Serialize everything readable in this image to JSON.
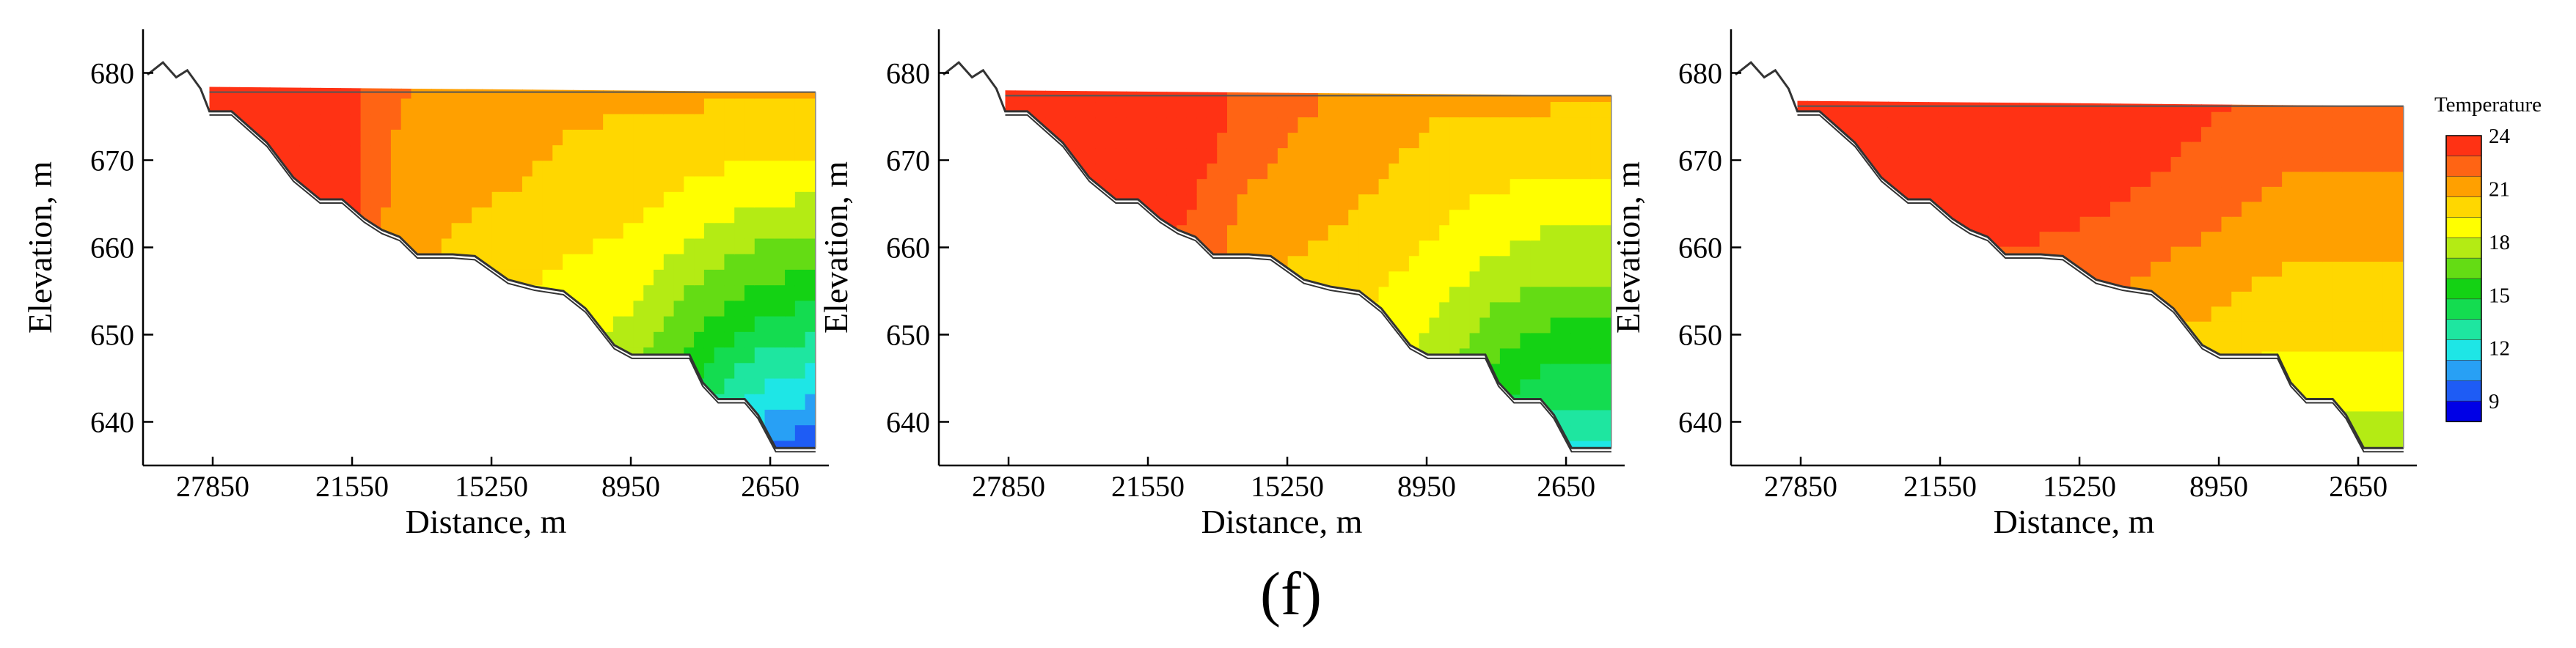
{
  "figure": {
    "caption": "(f)"
  },
  "chart_data": [
    {
      "type": "heatmap",
      "title": "",
      "xlabel": "Distance, m",
      "ylabel": "Elevation, m",
      "x_ticks": [
        "27850",
        "21550",
        "15250",
        "8950",
        "2650"
      ],
      "y_ticks": [
        "680",
        "670",
        "660",
        "650",
        "640"
      ],
      "xlim": [
        31000,
        0
      ],
      "ylim": [
        635,
        685
      ],
      "water_surface": 677.8,
      "field": {
        "top": [
          24,
          24,
          24,
          22,
          21.5,
          21.5,
          21,
          21,
          21,
          21,
          21
        ],
        "bottom": [
          24,
          24,
          24,
          20.5,
          19,
          18,
          17.5,
          16.5,
          13.5,
          11,
          10
        ]
      }
    },
    {
      "type": "heatmap",
      "title": "",
      "xlabel": "Distance, m",
      "ylabel": "Elevation, m",
      "x_ticks": [
        "27850",
        "21550",
        "15250",
        "8950",
        "2650"
      ],
      "y_ticks": [
        "680",
        "670",
        "660",
        "650",
        "640"
      ],
      "xlim": [
        31000,
        0
      ],
      "ylim": [
        635,
        685
      ],
      "water_surface": 677.4,
      "field": {
        "top": [
          24,
          24,
          24,
          24,
          22.5,
          22,
          21.5,
          21,
          21,
          21,
          21
        ],
        "bottom": [
          24,
          24,
          23,
          20,
          19,
          18.5,
          18,
          17,
          14.5,
          13,
          13
        ]
      }
    },
    {
      "type": "heatmap",
      "title": "",
      "xlabel": "Distance, m",
      "ylabel": "Elevation, m",
      "x_ticks": [
        "27850",
        "21550",
        "15250",
        "8950",
        "2650"
      ],
      "y_ticks": [
        "680",
        "670",
        "660",
        "650",
        "640"
      ],
      "xlim": [
        31000,
        0
      ],
      "ylim": [
        635,
        685
      ],
      "water_surface": 676.2,
      "field": {
        "top": [
          24,
          24,
          24,
          24,
          24,
          24,
          23.5,
          23,
          22.5,
          22.5,
          22.5
        ],
        "bottom": [
          24,
          24,
          24,
          21,
          20.5,
          19.5,
          19,
          18.5,
          18,
          18,
          18
        ]
      }
    }
  ],
  "legend": {
    "title": "Temperature",
    "levels": [
      24,
      21,
      18,
      15,
      12,
      9
    ],
    "colors": [
      "#0000e6",
      "#1e5cf5",
      "#28a0f5",
      "#1ee6e6",
      "#1ee6a0",
      "#14dc50",
      "#14d214",
      "#64dc14",
      "#b4eb14",
      "#ffff00",
      "#ffd700",
      "#ffa000",
      "#ff6414",
      "#ff3214"
    ]
  },
  "colors": {
    "outline": "#000000",
    "axis": "#000000",
    "terrain_line": "#333333"
  }
}
